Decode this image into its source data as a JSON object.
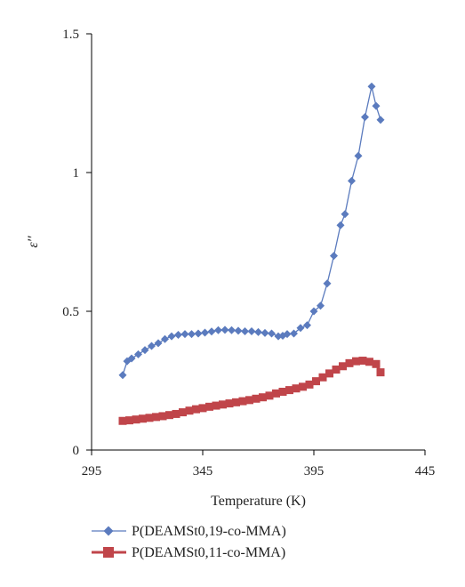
{
  "chart_data": {
    "type": "line",
    "xlabel": "Temperature (K)",
    "ylabel": "ε′′",
    "xlim": [
      295,
      445
    ],
    "ylim": [
      0,
      1.5
    ],
    "x_ticks": [
      "295",
      "345",
      "395",
      "445"
    ],
    "y_ticks": [
      "0",
      "0.5",
      "1",
      "1.5"
    ],
    "grid": false,
    "legend_position": "bottom",
    "series": [
      {
        "name": "P(DEAMSt0,19-co-MMA)",
        "color": "#5B7BBE",
        "marker": "diamond",
        "line": true,
        "points": [
          [
            309,
            0.27
          ],
          [
            311,
            0.32
          ],
          [
            313,
            0.33
          ],
          [
            316,
            0.345
          ],
          [
            319,
            0.36
          ],
          [
            322,
            0.375
          ],
          [
            325,
            0.385
          ],
          [
            328,
            0.4
          ],
          [
            331,
            0.41
          ],
          [
            334,
            0.415
          ],
          [
            337,
            0.418
          ],
          [
            340,
            0.418
          ],
          [
            343,
            0.42
          ],
          [
            346,
            0.423
          ],
          [
            349,
            0.427
          ],
          [
            352,
            0.432
          ],
          [
            355,
            0.433
          ],
          [
            358,
            0.432
          ],
          [
            361,
            0.43
          ],
          [
            364,
            0.428
          ],
          [
            367,
            0.428
          ],
          [
            370,
            0.425
          ],
          [
            373,
            0.422
          ],
          [
            376,
            0.42
          ],
          [
            379,
            0.41
          ],
          [
            381,
            0.412
          ],
          [
            383,
            0.418
          ],
          [
            386,
            0.42
          ],
          [
            389,
            0.44
          ],
          [
            392,
            0.45
          ],
          [
            395,
            0.5
          ],
          [
            398,
            0.52
          ],
          [
            401,
            0.6
          ],
          [
            404,
            0.7
          ],
          [
            407,
            0.81
          ],
          [
            409,
            0.85
          ],
          [
            412,
            0.97
          ],
          [
            415,
            1.06
          ],
          [
            418,
            1.2
          ],
          [
            421,
            1.31
          ],
          [
            423,
            1.24
          ],
          [
            425,
            1.19
          ]
        ]
      },
      {
        "name": "P(DEAMSt0,11-co-MMA)",
        "color": "#C0454A",
        "marker": "square",
        "line": true,
        "points": [
          [
            309,
            0.105
          ],
          [
            312,
            0.107
          ],
          [
            315,
            0.11
          ],
          [
            318,
            0.113
          ],
          [
            321,
            0.116
          ],
          [
            324,
            0.119
          ],
          [
            327,
            0.122
          ],
          [
            330,
            0.126
          ],
          [
            333,
            0.13
          ],
          [
            336,
            0.136
          ],
          [
            339,
            0.142
          ],
          [
            342,
            0.147
          ],
          [
            345,
            0.151
          ],
          [
            348,
            0.156
          ],
          [
            351,
            0.16
          ],
          [
            354,
            0.164
          ],
          [
            357,
            0.168
          ],
          [
            360,
            0.172
          ],
          [
            363,
            0.176
          ],
          [
            366,
            0.18
          ],
          [
            369,
            0.185
          ],
          [
            372,
            0.19
          ],
          [
            375,
            0.196
          ],
          [
            378,
            0.204
          ],
          [
            381,
            0.21
          ],
          [
            384,
            0.216
          ],
          [
            387,
            0.222
          ],
          [
            390,
            0.228
          ],
          [
            393,
            0.236
          ],
          [
            396,
            0.248
          ],
          [
            399,
            0.262
          ],
          [
            402,
            0.276
          ],
          [
            405,
            0.29
          ],
          [
            408,
            0.302
          ],
          [
            411,
            0.313
          ],
          [
            414,
            0.32
          ],
          [
            417,
            0.322
          ],
          [
            420,
            0.318
          ],
          [
            423,
            0.31
          ],
          [
            425,
            0.28
          ]
        ]
      }
    ]
  }
}
